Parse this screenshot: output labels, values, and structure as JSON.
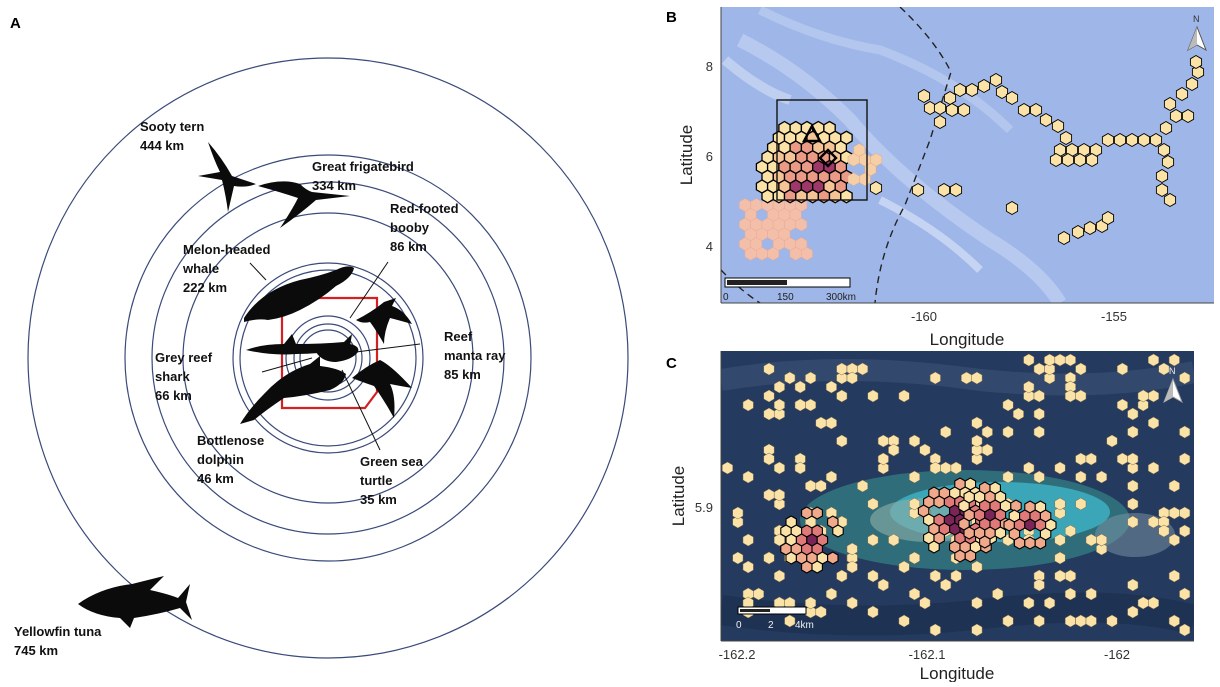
{
  "panels": {
    "a": {
      "letter": "A"
    },
    "b": {
      "letter": "B"
    },
    "c": {
      "letter": "C"
    }
  },
  "species": [
    {
      "name": "Sooty tern",
      "distance": "444 km"
    },
    {
      "name": "Great frigatebird",
      "distance": "334 km"
    },
    {
      "name_lines": [
        "Red-footed",
        "booby"
      ],
      "distance": "86 km"
    },
    {
      "name_lines": [
        "Melon-headed",
        "whale"
      ],
      "distance": "222 km"
    },
    {
      "name_lines": [
        "Reef",
        "manta ray"
      ],
      "distance": "85 km"
    },
    {
      "name_lines": [
        "Grey reef",
        "shark"
      ],
      "distance": "66 km"
    },
    {
      "name_lines": [
        "Bottlenose",
        "dolphin"
      ],
      "distance": "46 km"
    },
    {
      "name_lines": [
        "Green sea",
        "turtle"
      ],
      "distance": "35 km"
    },
    {
      "name": "Yellowfin tuna",
      "distance": "745 km"
    }
  ],
  "map_b": {
    "xlabel": "Longitude",
    "ylabel": "Latitude",
    "x_ticks": [
      "-160",
      "-155"
    ],
    "y_ticks": [
      "8",
      "6",
      "4"
    ],
    "scale_labels": [
      "0",
      "150",
      "300km"
    ],
    "north_label": "N",
    "colors": {
      "sea": "#9fb6e8",
      "hex_light": "#fbe3a8",
      "hex_mid": "#f0b48a",
      "hex_dark": "#a0336a"
    }
  },
  "map_c": {
    "xlabel": "Longitude",
    "ylabel": "Latitude",
    "x_ticks": [
      "-162.2",
      "-162.1",
      "-162"
    ],
    "y_ticks": [
      "5.9"
    ],
    "scale_labels": [
      "0",
      "2",
      "4km"
    ],
    "north_label": "N",
    "colors": {
      "sea": "#243a5e",
      "lagoon": "#3aa6b8",
      "hex_light": "#fbe3a8",
      "hex_dark": "#8a2a5e"
    }
  }
}
